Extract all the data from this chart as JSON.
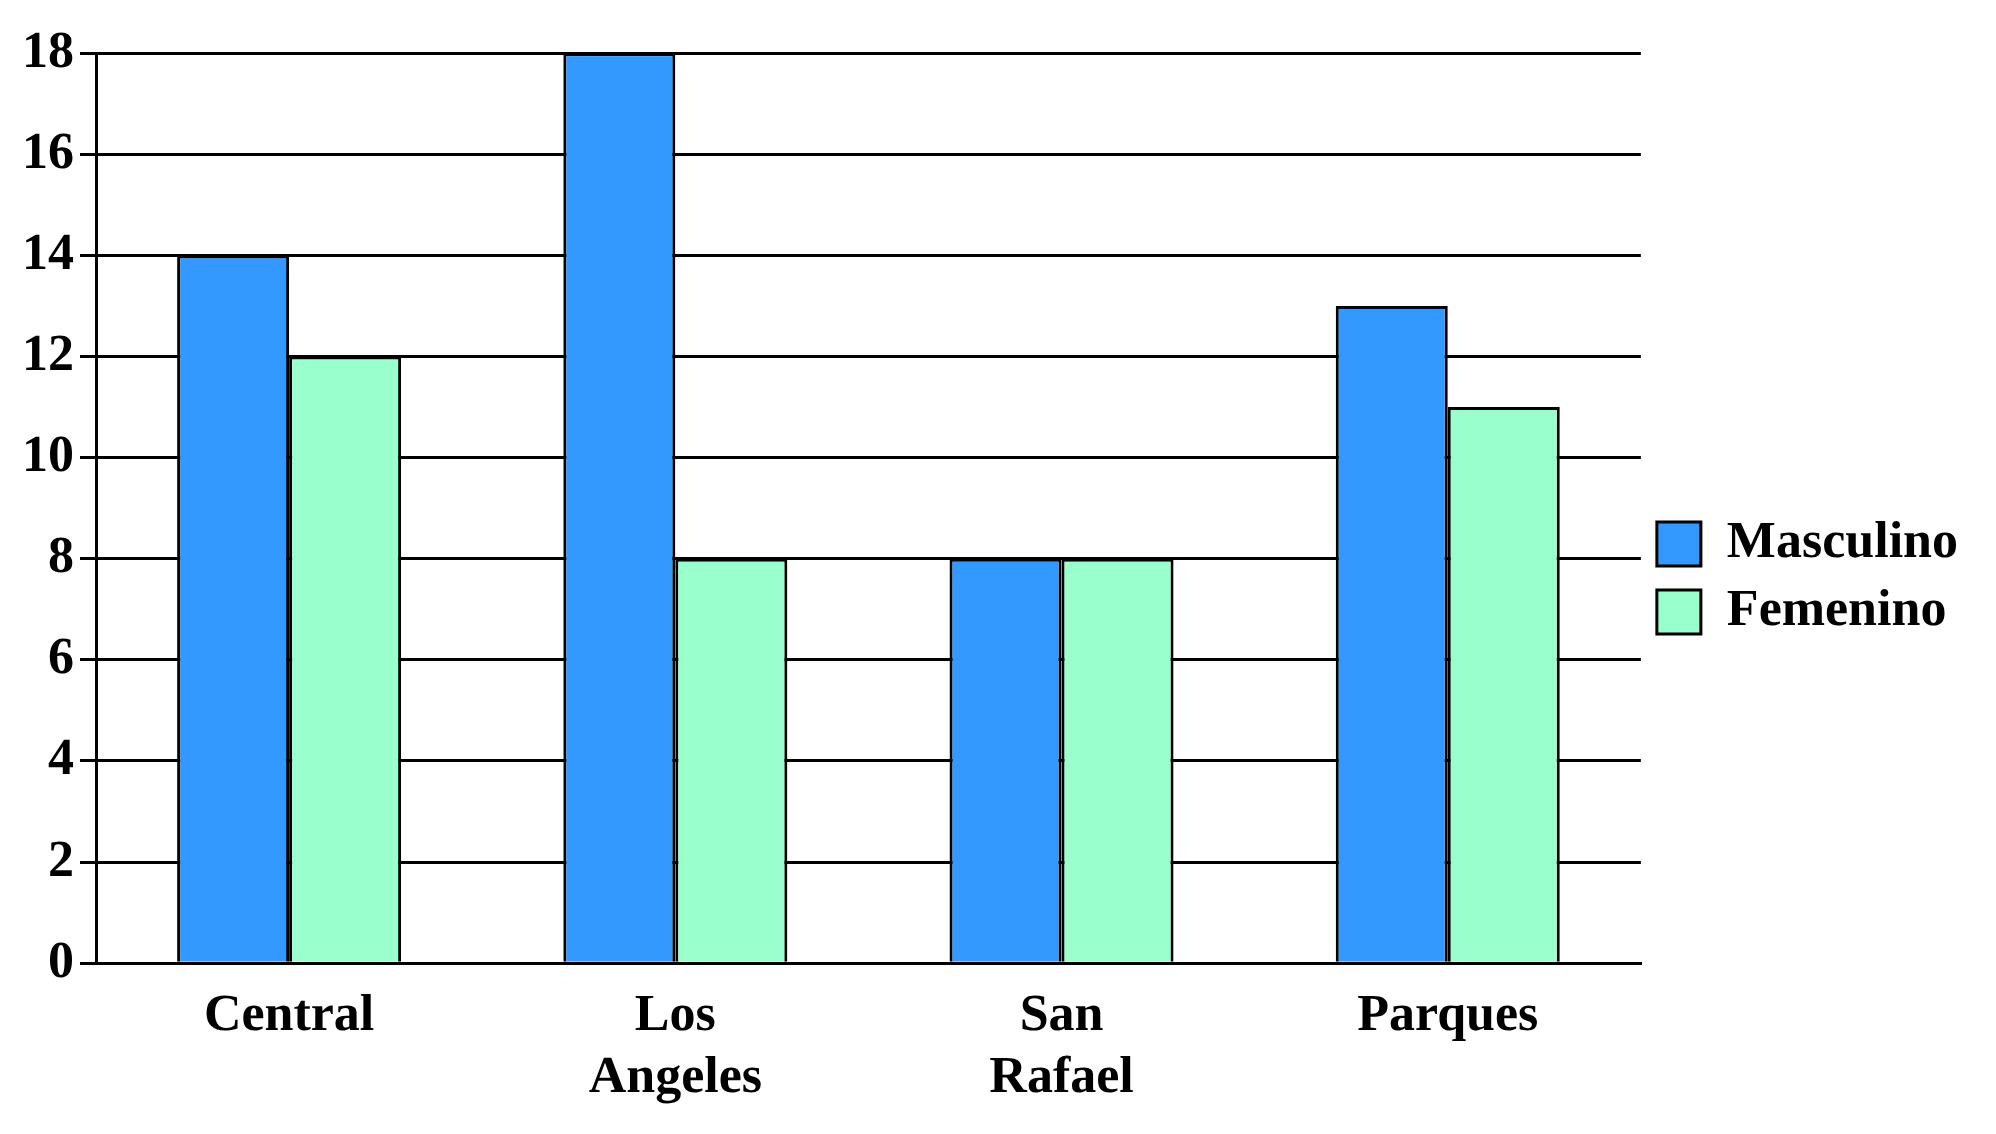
{
  "chart_data": {
    "type": "bar",
    "categories": [
      "Central",
      "Los Angeles",
      "San Rafael",
      "Parques"
    ],
    "series": [
      {
        "name": "Masculino",
        "color": "#3399ff",
        "values": [
          14,
          18,
          8,
          13
        ]
      },
      {
        "name": "Femenino",
        "color": "#99ffcc",
        "values": [
          12,
          8,
          8,
          11
        ]
      }
    ],
    "ylim": [
      0,
      18
    ],
    "yticks": [
      0,
      2,
      4,
      6,
      8,
      10,
      12,
      14,
      16,
      18
    ],
    "grid": "y",
    "legend": "right"
  }
}
